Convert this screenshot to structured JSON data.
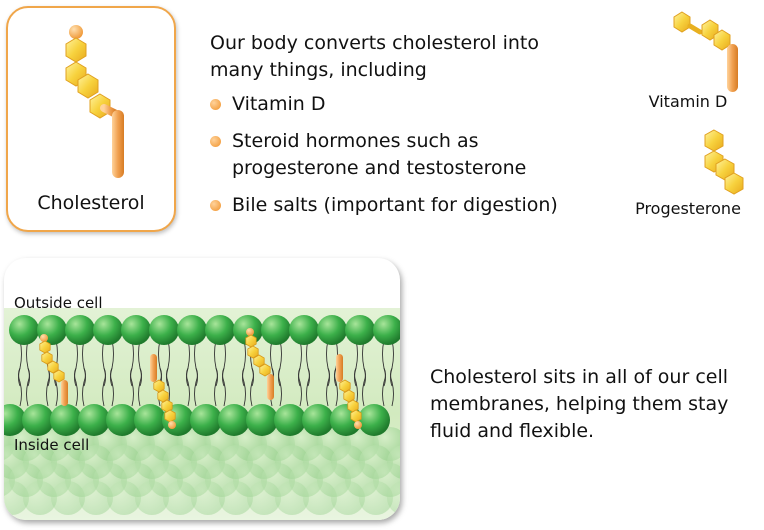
{
  "cholesterol_card": {
    "label": "Cholesterol"
  },
  "conversion": {
    "intro_lines": [
      "Our body converts cholesterol into",
      "many things, including"
    ],
    "items": [
      {
        "lines": [
          "Vitamin D"
        ]
      },
      {
        "lines": [
          "Steroid hormones such as",
          "progesterone and testosterone"
        ]
      },
      {
        "lines": [
          "Bile salts (important for digestion)"
        ]
      }
    ]
  },
  "molecules": {
    "vitamin_d_label": "Vitamin D",
    "progesterone_label": "Progesterone"
  },
  "membrane": {
    "outside_label": "Outside cell",
    "inside_label": "Inside cell",
    "description_lines": [
      "Cholesterol sits in all of our cell",
      "membranes, helping them stay",
      "fluid and flexible."
    ]
  },
  "colors": {
    "card_border": "#f0a64a",
    "bullet": "#f0922a",
    "ring_yellow": "#f7d23e",
    "tail_orange": "#f0a050",
    "lipid_green": "#3cac3c",
    "membrane_bg": "#cfe8bf"
  }
}
